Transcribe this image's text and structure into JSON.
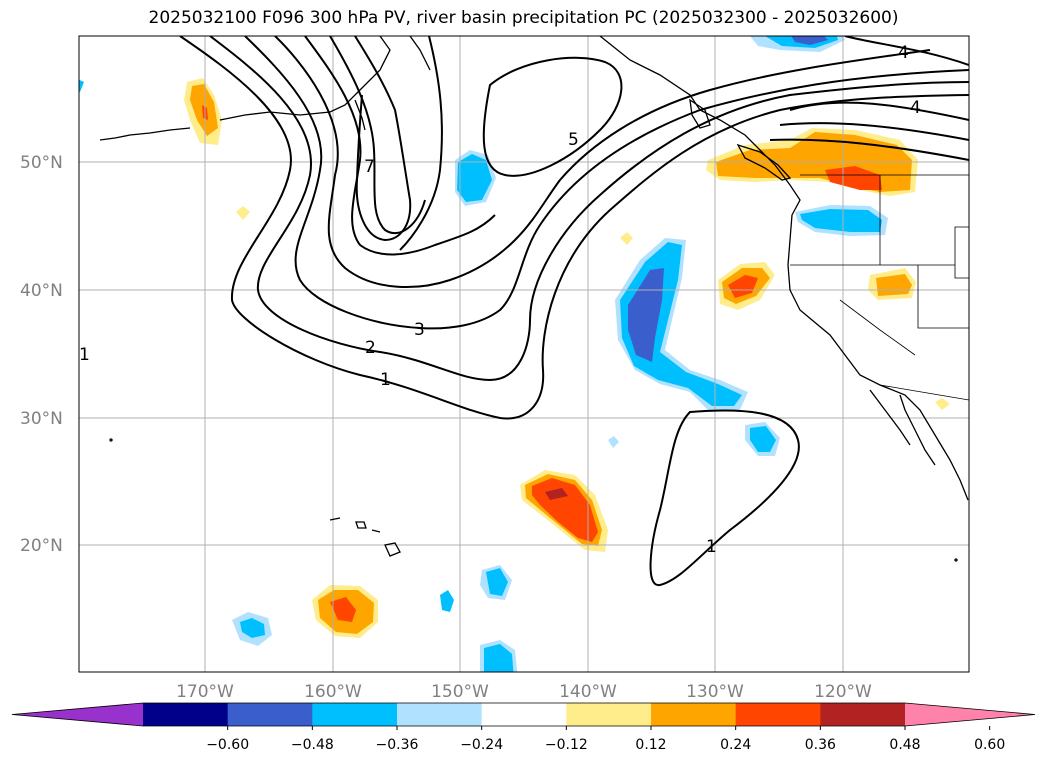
{
  "title": "2025032100 F096 300 hPa PV, river basin precipitation PC (2025032300 - 2025032600)",
  "map": {
    "lat_labels": [
      "50°N",
      "40°N",
      "30°N",
      "20°N"
    ],
    "lon_labels": [
      "170°W",
      "160°W",
      "150°W",
      "140°W",
      "130°W",
      "120°W"
    ],
    "pv_contour_labels": [
      "7",
      "5",
      "4",
      "4",
      "3",
      "2",
      "1",
      "1",
      "1"
    ]
  },
  "colorbar": {
    "ticks": [
      "−0.60",
      "−0.48",
      "−0.36",
      "−0.24",
      "−0.12",
      "0.12",
      "0.24",
      "0.36",
      "0.48",
      "0.60"
    ],
    "colors": [
      "#9932CC",
      "#00008B",
      "#3A5FCD",
      "#00BFFF",
      "#B0E2FF",
      "#FFFFFF",
      "#FFEC8B",
      "#FFA500",
      "#FF4500",
      "#B22222",
      "#FF82AB"
    ]
  }
}
